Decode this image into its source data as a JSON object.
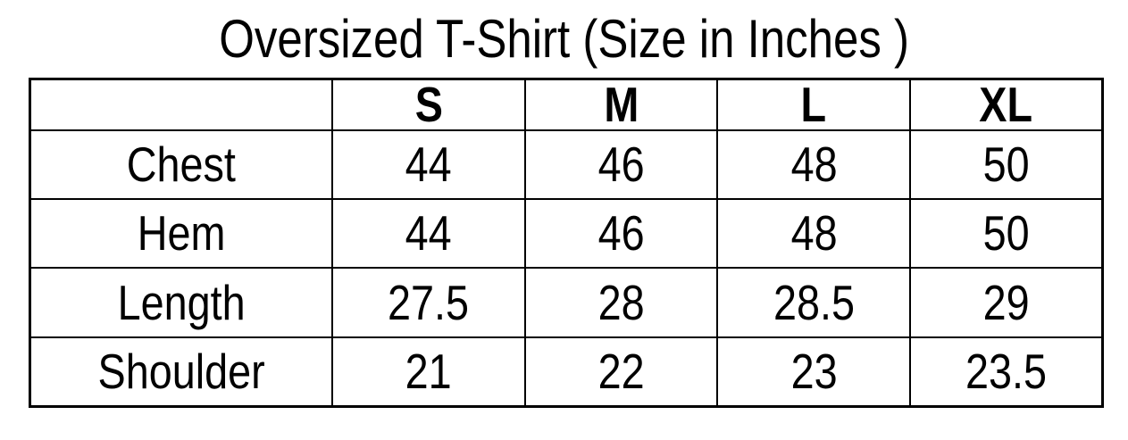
{
  "title": "Oversized T-Shirt (Size in Inches )",
  "table": {
    "header": [
      "",
      "S",
      "M",
      "L",
      "XL"
    ],
    "rows": [
      {
        "label": "Chest",
        "values": [
          "44",
          "46",
          "48",
          "50"
        ]
      },
      {
        "label": "Hem",
        "values": [
          "44",
          "46",
          "48",
          "50"
        ]
      },
      {
        "label": "Length",
        "values": [
          "27.5",
          "28",
          "28.5",
          "29"
        ]
      },
      {
        "label": "Shoulder",
        "values": [
          "21",
          "22",
          "23",
          "23.5"
        ]
      }
    ]
  },
  "chart_data": {
    "type": "table",
    "title": "Oversized T-Shirt (Size in Inches )",
    "columns": [
      "",
      "S",
      "M",
      "L",
      "XL"
    ],
    "rows": [
      [
        "Chest",
        44,
        46,
        48,
        50
      ],
      [
        "Hem",
        44,
        46,
        48,
        50
      ],
      [
        "Length",
        27.5,
        28,
        28.5,
        29
      ],
      [
        "Shoulder",
        21,
        22,
        23,
        23.5
      ]
    ]
  },
  "colors": {
    "background": "#ffffff",
    "border": "#000000",
    "text": "#000000"
  }
}
